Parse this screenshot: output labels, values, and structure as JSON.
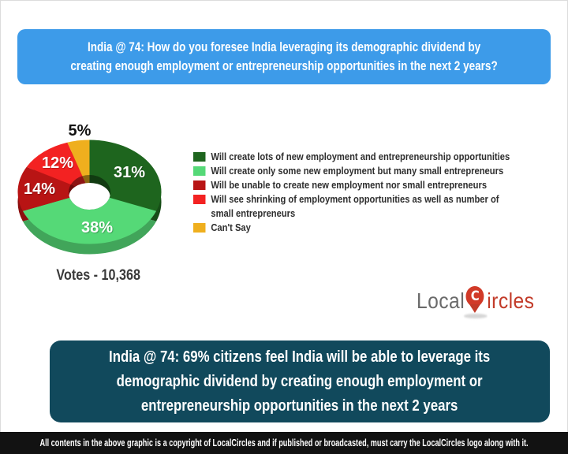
{
  "header": {
    "question": "India @ 74: How do you foresee India leveraging its demographic dividend by\ncreating enough employment or entrepreneurship opportunities in the next 2 years?"
  },
  "chart_data": {
    "type": "pie",
    "donut": true,
    "start_angle": "top",
    "direction": "clockwise",
    "unit": "%",
    "categories": [
      "Will create lots of new employment and entrepreneurship opportunities",
      "Will create only some new employment but many small entrepreneurs",
      "Will be unable to create new employment nor small entrepreneurs",
      "Will see shrinking of employment opportunities as well as number of\nsmall entrepreneurs",
      "Can't Say"
    ],
    "values": [
      31,
      38,
      14,
      12,
      5
    ],
    "colors": [
      "#1E651E",
      "#55D977",
      "#B81414",
      "#F32222",
      "#EFAF1E"
    ],
    "legend_position": "right",
    "votes_label": "Votes - 10,368"
  },
  "summary_banner": {
    "text": "India @ 74: 69% citizens feel India will be able to leverage its\ndemographic dividend by creating enough employment or\nentrepreneurship opportunities in the next 2 years"
  },
  "logo": {
    "part1": "Local",
    "part2": "ircles",
    "pin_letter": "C"
  },
  "footer": {
    "text": "All contents in the above graphic is a copyright of LocalCircles and if published or broadcasted, must carry the LocalCircles logo along with it."
  },
  "colors": {
    "header_bg": "#3D9BE9",
    "banner_bg": "#11495C",
    "footer_bg": "#121212",
    "logo_gray": "#6A6A6A",
    "logo_red": "#C23A28",
    "pin_red": "#D13A28"
  }
}
